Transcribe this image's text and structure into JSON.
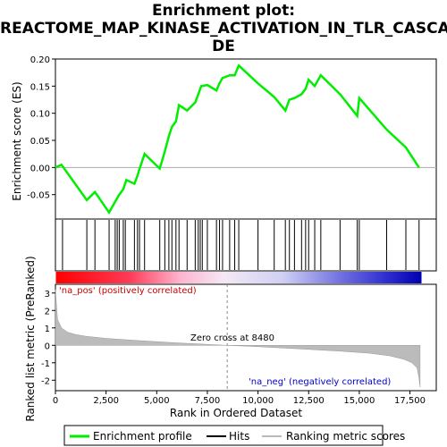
{
  "title": {
    "line1": "Enrichment plot:",
    "line2": "REACTOME_MAP_KINASE_ACTIVATION_IN_TLR_CASCA",
    "line3": "DE"
  },
  "chart_data": {
    "type": "line",
    "xlabel": "Rank in Ordered Dataset",
    "x_ticks": [
      0,
      2500,
      5000,
      7500,
      10000,
      12500,
      15000,
      17500
    ],
    "x_tick_labels": [
      "0",
      "2,500",
      "5,000",
      "7,500",
      "10,000",
      "12,500",
      "15,000",
      "17,500"
    ],
    "xlim": [
      0,
      18800
    ],
    "top_panel": {
      "ylabel": "Enrichment score (ES)",
      "ylim": [
        -0.095,
        0.2
      ],
      "y_ticks": [
        -0.05,
        0.0,
        0.05,
        0.1,
        0.15,
        0.2
      ],
      "y_tick_labels": [
        "-0.05",
        "0.00",
        "0.05",
        "0.10",
        "0.15",
        "0.20"
      ],
      "series": [
        {
          "name": "Enrichment profile",
          "color": "#00ee00",
          "x": [
            0,
            300,
            1550,
            1950,
            2650,
            2950,
            3150,
            3350,
            3500,
            3900,
            4050,
            4150,
            4400,
            5150,
            5400,
            5600,
            5750,
            5950,
            6100,
            6500,
            6900,
            7050,
            7200,
            7500,
            7950,
            8100,
            8250,
            8600,
            8850,
            9050,
            10000,
            10800,
            11350,
            11550,
            11800,
            12150,
            12350,
            12500,
            12800,
            13100,
            14050,
            14900,
            15000,
            16350,
            17300,
            17950
          ],
          "y": [
            0.0,
            0.005,
            -0.06,
            -0.045,
            -0.083,
            -0.063,
            -0.05,
            -0.04,
            -0.023,
            -0.03,
            -0.015,
            -0.003,
            0.025,
            -0.002,
            0.03,
            0.058,
            0.075,
            0.085,
            0.115,
            0.105,
            0.12,
            0.135,
            0.15,
            0.152,
            0.142,
            0.155,
            0.165,
            0.17,
            0.17,
            0.188,
            0.155,
            0.13,
            0.105,
            0.125,
            0.128,
            0.135,
            0.145,
            0.162,
            0.15,
            0.17,
            0.135,
            0.095,
            0.128,
            0.07,
            0.037,
            0.0
          ]
        }
      ]
    },
    "hits": {
      "name": "Hits",
      "color": "#000000",
      "x": [
        350,
        1550,
        1950,
        2650,
        2950,
        3050,
        3150,
        3350,
        3450,
        3900,
        4050,
        4150,
        4400,
        5150,
        5400,
        5600,
        5750,
        5950,
        6100,
        6500,
        6900,
        7050,
        7150,
        7250,
        7500,
        7950,
        8100,
        8250,
        8600,
        8850,
        9050,
        10000,
        10800,
        11350,
        11550,
        11800,
        12150,
        12350,
        12500,
        12800,
        13100,
        14050,
        14900,
        15000,
        16350,
        17300,
        17950
      ]
    },
    "ranked_panel": {
      "ylabel": "Ranked list metric (PreRanked)",
      "name": "Ranking metric scores",
      "ylim": [
        -2.6,
        3.5
      ],
      "y_ticks": [
        -2,
        -1,
        0,
        1,
        2,
        3
      ],
      "y_tick_labels": [
        "-2",
        "-1",
        "0",
        "1",
        "2",
        "3"
      ],
      "zero_cross_label": "Zero cross at 8480",
      "zero_cross": 8480,
      "pos_label": "'na_pos' (positively correlated)",
      "neg_label": "'na_neg' (negatively correlated)",
      "x": [
        0,
        100,
        300,
        600,
        1000,
        1500,
        2500,
        4000,
        6000,
        8480,
        10000,
        12000,
        14000,
        15500,
        16500,
        17200,
        17600,
        17850,
        17950,
        18000
      ],
      "y": [
        3.2,
        1.5,
        1.0,
        0.75,
        0.62,
        0.52,
        0.4,
        0.28,
        0.14,
        0.0,
        -0.08,
        -0.2,
        -0.33,
        -0.45,
        -0.6,
        -0.8,
        -1.0,
        -1.3,
        -1.9,
        -2.4
      ]
    },
    "legend": [
      "Enrichment profile",
      "Hits",
      "Ranking metric scores"
    ],
    "legend_placement": "bottom"
  }
}
